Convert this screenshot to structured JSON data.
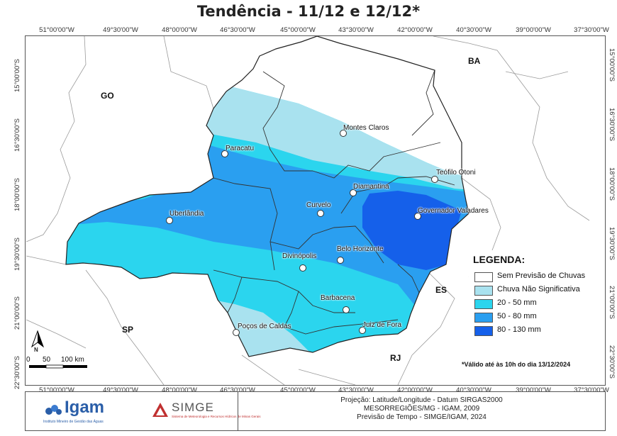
{
  "title": "Tendência - 11/12 e 12/12*",
  "longitude_ticks": [
    "51°00'00\"W",
    "49°30'00\"W",
    "48°00'00\"W",
    "46°30'00\"W",
    "45°00'00\"W",
    "43°30'00\"W",
    "42°00'00\"W",
    "40°30'00\"W",
    "39°00'00\"W",
    "37°30'00\"W"
  ],
  "latitude_ticks": [
    "15°00'00\"S",
    "16°30'00\"S",
    "18°00'00\"S",
    "19°30'00\"S",
    "21°00'00\"S",
    "22°30'00\"S"
  ],
  "states": {
    "go": "GO",
    "ba": "BA",
    "es": "ES",
    "sp": "SP",
    "rj": "RJ"
  },
  "cities": [
    "Montes Claros",
    "Paracatu",
    "Teófilo Otoni",
    "Diamantina",
    "Curvelo",
    "Governador Valadares",
    "Uberlândia",
    "Belo Horizonte",
    "Divinópolis",
    "Barbacena",
    "Juiz de Fora",
    "Poços de Caldas"
  ],
  "legend": {
    "title": "LEGENDA:",
    "items": [
      {
        "label": "Sem Previsão de Chuvas",
        "color": "#ffffff"
      },
      {
        "label": "Chuva Não Significativa",
        "color": "#a9e2ef"
      },
      {
        "label": "20 - 50 mm",
        "color": "#2bd5ee"
      },
      {
        "label": "50 - 80 mm",
        "color": "#2a9ff0"
      },
      {
        "label": "80 - 130 mm",
        "color": "#1560ea"
      }
    ]
  },
  "scale": {
    "zero": "0",
    "mid": "50",
    "end": "100 km"
  },
  "north_symbol": "N",
  "validity_note": "*Válido até às 10h do dia 13/12/2024",
  "footer": {
    "igam_name": "Igam",
    "igam_subtitle": "Instituto Mineiro de Gestão das Águas",
    "simge_name": "SIMGE",
    "simge_subtitle": "Sistema de Meteorologia e Recursos Hídricos de Minas Gerais",
    "line1": "Projeção: Latitude/Longitude - Datum SIRGAS2000",
    "line2": "MESORREGIÕES/MG - IGAM, 2009",
    "line3": "Previsão de Tempo - SIMGE/IGAM, 2024"
  }
}
